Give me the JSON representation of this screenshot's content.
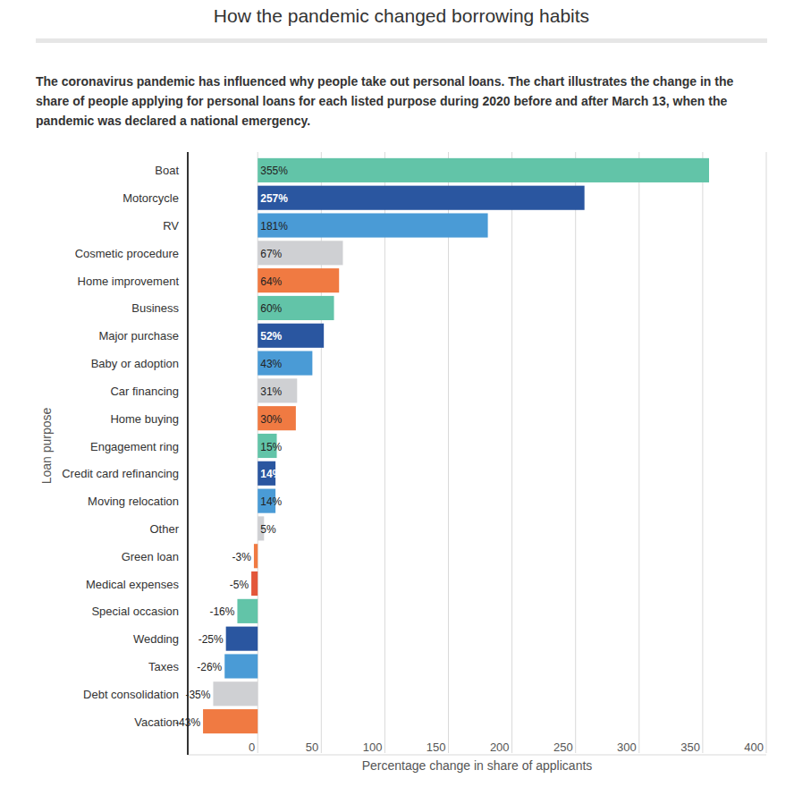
{
  "chart_data": {
    "type": "bar",
    "orientation": "horizontal",
    "title": "How the pandemic changed borrowing habits",
    "subtitle": "The coronavirus pandemic has influenced why people take out personal loans. The chart illustrates the change in the share of people applying for personal loans for each listed purpose during 2020 before and after March 13, when the pandemic was declared a national emergency.",
    "x_label": "Percentage change in share of applicants",
    "y_label": "Loan purpose",
    "categories": [
      "Boat",
      "Motorcycle",
      "RV",
      "Cosmetic procedure",
      "Home improvement",
      "Business",
      "Major purchase",
      "Baby or adoption",
      "Car financing",
      "Home buying",
      "Engagement ring",
      "Credit card refinancing",
      "Moving relocation",
      "Other",
      "Green loan",
      "Medical expenses",
      "Special occasion",
      "Wedding",
      "Taxes",
      "Debt consolidation",
      "Vacation"
    ],
    "values": [
      355,
      257,
      181,
      67,
      64,
      60,
      52,
      43,
      31,
      30,
      15,
      14,
      14,
      5,
      -3,
      -5,
      -16,
      -25,
      -26,
      -35,
      -43
    ],
    "value_labels": [
      "355%",
      "257%",
      "181%",
      "67%",
      "64%",
      "60%",
      "52%",
      "43%",
      "31%",
      "30%",
      "15%",
      "14%",
      "14%",
      "5%",
      "-3%",
      "-5%",
      "-16%",
      "-25%",
      "-26%",
      "-35%",
      "-43%"
    ],
    "colors": [
      "#62c4a8",
      "#2a56a0",
      "#4a9bd6",
      "#cfd0d3",
      "#f07a42",
      "#62c4a8",
      "#2a56a0",
      "#4a9bd6",
      "#cfd0d3",
      "#f07a42",
      "#62c4a8",
      "#2a56a0",
      "#4a9bd6",
      "#cfd0d3",
      "#f07a42",
      "#e3573a",
      "#62c4a8",
      "#2a56a0",
      "#4a9bd6",
      "#cfd0d3",
      "#f07a42"
    ],
    "xlim": [
      -55,
      400
    ],
    "xticks": [
      0,
      50,
      100,
      150,
      200,
      250,
      300,
      350,
      400
    ],
    "grid": true,
    "data_labels": true
  }
}
